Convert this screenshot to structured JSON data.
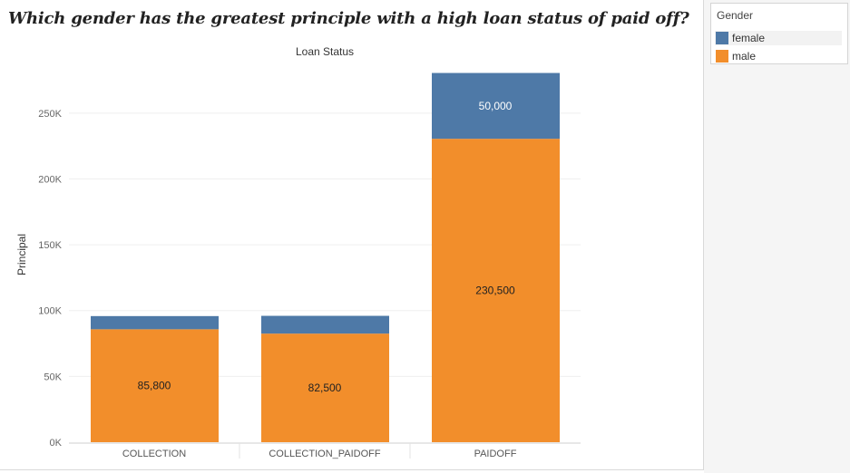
{
  "title": "Which gender has the greatest principle with a high loan status of paid off?",
  "legend": {
    "title": "Gender",
    "items": [
      {
        "label": "female",
        "color": "#4e79a7"
      },
      {
        "label": "male",
        "color": "#f28e2b"
      }
    ]
  },
  "chart_data": {
    "type": "bar",
    "stacked": true,
    "title": "Loan Status",
    "xlabel": "",
    "ylabel": "Principal",
    "categories": [
      "COLLECTION",
      "COLLECTION_PAIDOFF",
      "PAIDOFF"
    ],
    "series": [
      {
        "name": "male",
        "values": [
          85800,
          82500,
          230500
        ],
        "color": "#f28e2b",
        "labels": [
          "85,800",
          "82,500",
          "230,500"
        ]
      },
      {
        "name": "female",
        "values": [
          10000,
          13500,
          50000
        ],
        "color": "#4e79a7",
        "labels": [
          "",
          "",
          "50,000"
        ]
      }
    ],
    "yticks": [
      {
        "value": 0,
        "label": "0K"
      },
      {
        "value": 50000,
        "label": "50K"
      },
      {
        "value": 100000,
        "label": "100K"
      },
      {
        "value": 150000,
        "label": "150K"
      },
      {
        "value": 200000,
        "label": "200K"
      },
      {
        "value": 250000,
        "label": "250K"
      }
    ],
    "ylim": [
      0,
      285000
    ],
    "grid": true,
    "legend_position": "right"
  }
}
